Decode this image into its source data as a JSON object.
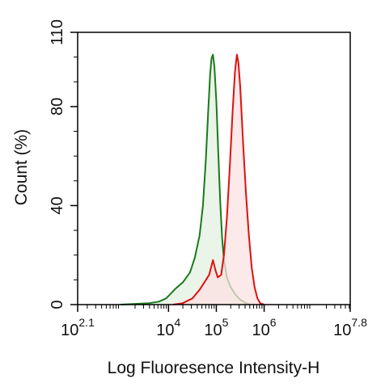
{
  "chart_data": {
    "type": "area",
    "xlabel": "Log Fluoresence Intensity-H",
    "ylabel": "Count  (%)",
    "x_scale": "log10",
    "xlim": [
      2.1,
      7.8
    ],
    "ylim": [
      0,
      110
    ],
    "x_ticks": [
      {
        "base": "10",
        "exp": "2.1",
        "value": 2.1
      },
      {
        "base": "10",
        "exp": "4",
        "value": 4
      },
      {
        "base": "10",
        "exp": "5",
        "value": 5
      },
      {
        "base": "10",
        "exp": "6",
        "value": 6
      },
      {
        "base": "10",
        "exp": "7.8",
        "value": 7.8
      }
    ],
    "y_ticks": [
      {
        "label": "0",
        "value": 0
      },
      {
        "label": "40",
        "value": 40
      },
      {
        "label": "80",
        "value": 80
      },
      {
        "label": "110",
        "value": 110
      }
    ],
    "grid": false,
    "legend": "none",
    "series": [
      {
        "color": "#1a7a1a",
        "fill": "#e3f0e0",
        "points": [
          [
            3.0,
            0
          ],
          [
            3.3,
            0.3
          ],
          [
            3.6,
            0.6
          ],
          [
            3.8,
            1.2
          ],
          [
            3.95,
            2.5
          ],
          [
            4.05,
            4.5
          ],
          [
            4.15,
            6.5
          ],
          [
            4.3,
            9
          ],
          [
            4.45,
            13
          ],
          [
            4.55,
            19
          ],
          [
            4.65,
            28
          ],
          [
            4.72,
            40
          ],
          [
            4.78,
            58
          ],
          [
            4.83,
            78
          ],
          [
            4.87,
            93
          ],
          [
            4.9,
            99.5
          ],
          [
            4.93,
            101
          ],
          [
            4.96,
            96
          ],
          [
            5.0,
            82
          ],
          [
            5.04,
            62
          ],
          [
            5.08,
            42
          ],
          [
            5.12,
            27
          ],
          [
            5.16,
            18
          ],
          [
            5.22,
            11
          ],
          [
            5.3,
            7
          ],
          [
            5.4,
            4
          ],
          [
            5.5,
            2
          ],
          [
            5.6,
            0.8
          ],
          [
            5.7,
            0
          ]
        ]
      },
      {
        "color": "#dd1111",
        "fill": "#fbe1e1",
        "points": [
          [
            4.1,
            0
          ],
          [
            4.3,
            0.6
          ],
          [
            4.5,
            2.5
          ],
          [
            4.65,
            6
          ],
          [
            4.75,
            9
          ],
          [
            4.85,
            12
          ],
          [
            4.93,
            18
          ],
          [
            4.98,
            14
          ],
          [
            5.03,
            11
          ],
          [
            5.1,
            12
          ],
          [
            5.16,
            20
          ],
          [
            5.22,
            35
          ],
          [
            5.28,
            55
          ],
          [
            5.34,
            78
          ],
          [
            5.39,
            94
          ],
          [
            5.43,
            101
          ],
          [
            5.46,
            98
          ],
          [
            5.5,
            88
          ],
          [
            5.56,
            65
          ],
          [
            5.62,
            45
          ],
          [
            5.68,
            28
          ],
          [
            5.74,
            15
          ],
          [
            5.8,
            7
          ],
          [
            5.86,
            2.5
          ],
          [
            5.92,
            0.5
          ],
          [
            6.0,
            0
          ]
        ]
      }
    ]
  }
}
